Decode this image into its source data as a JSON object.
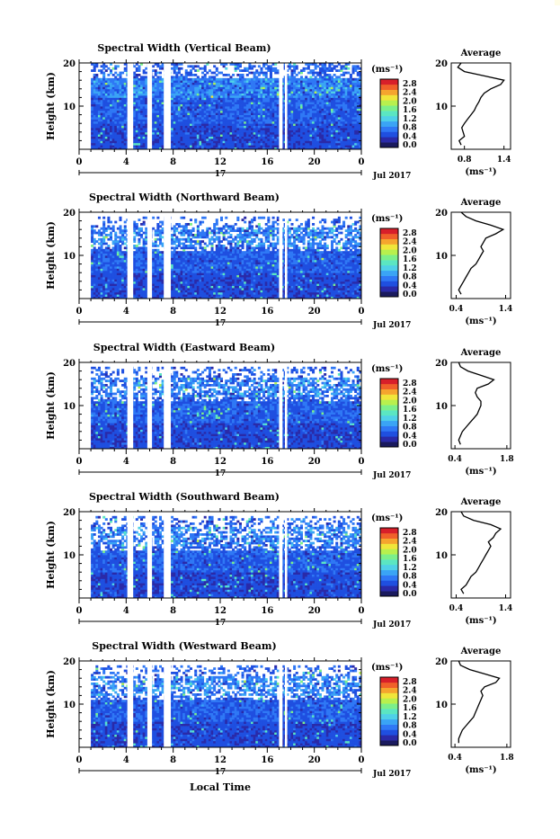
{
  "figure": {
    "x_axis_title": "Local Time",
    "avg_axis_unit": "(ms⁻¹)",
    "colorbar_unit": "(ms⁻¹)",
    "y_axis_title": "Height (km)",
    "date_right": "Jul 2017",
    "date_center": "17",
    "average_title": "Average"
  },
  "colorbar": {
    "tick_labels": [
      "0.0",
      "0.4",
      "0.8",
      "1.2",
      "1.6",
      "2.0",
      "2.4",
      "2.8"
    ],
    "colors": [
      "#1a1a5e",
      "#2a2aa8",
      "#1f4fe0",
      "#2f78f5",
      "#3aa4f5",
      "#4fd0e8",
      "#5be6c2",
      "#7cef8a",
      "#b8f04e",
      "#f0e63a",
      "#f5a52e",
      "#f0602a",
      "#d81f2a"
    ]
  },
  "chart_data": [
    {
      "type": "heatmap",
      "title": "Spectral Width (Vertical Beam)",
      "xlabel": "",
      "ylabel": "Height (km)",
      "x_ticks": [
        "0",
        "4",
        "8",
        "12",
        "16",
        "20",
        "0"
      ],
      "xlim": [
        0,
        24
      ],
      "y_ticks": [
        "20",
        "10"
      ],
      "ylim": [
        0,
        20
      ],
      "data_gaps_hours": [
        [
          4.1,
          4.6
        ],
        [
          5.8,
          6.2
        ],
        [
          7.2,
          7.8
        ],
        [
          17.0,
          17.3
        ],
        [
          17.5,
          17.7
        ]
      ],
      "bottom_hours": 1,
      "top_height_km": 20,
      "profile": {
        "title": "Average",
        "x_ticks": [
          "0.8",
          "1.4"
        ],
        "xlim": [
          0.6,
          1.5
        ],
        "heights_km": [
          1,
          2,
          3,
          4,
          5,
          6,
          7,
          8,
          9,
          10,
          11,
          12,
          13,
          14,
          15,
          16,
          17,
          18,
          19,
          20
        ],
        "values": [
          0.75,
          0.72,
          0.8,
          0.78,
          0.76,
          0.8,
          0.85,
          0.9,
          0.95,
          0.98,
          1.02,
          1.05,
          1.1,
          1.2,
          1.35,
          1.4,
          1.1,
          0.8,
          0.7,
          0.75
        ]
      }
    },
    {
      "type": "heatmap",
      "title": "Spectral Width (Northward Beam)",
      "xlabel": "",
      "ylabel": "Height (km)",
      "x_ticks": [
        "0",
        "4",
        "8",
        "12",
        "16",
        "20",
        "0"
      ],
      "xlim": [
        0,
        24
      ],
      "y_ticks": [
        "20",
        "10"
      ],
      "ylim": [
        0,
        20
      ],
      "data_gaps_hours": [
        [
          4.1,
          4.6
        ],
        [
          5.8,
          6.2
        ],
        [
          7.2,
          7.8
        ],
        [
          17.0,
          17.3
        ],
        [
          17.5,
          17.7
        ]
      ],
      "bottom_hours": 1,
      "top_height_km": 19,
      "profile": {
        "title": "Average",
        "x_ticks": [
          "0.4",
          "1.4"
        ],
        "xlim": [
          0.3,
          1.5
        ],
        "heights_km": [
          1,
          2,
          3,
          4,
          5,
          6,
          7,
          8,
          9,
          10,
          11,
          12,
          13,
          14,
          15,
          16,
          17,
          18,
          19,
          20
        ],
        "values": [
          0.5,
          0.45,
          0.5,
          0.55,
          0.6,
          0.65,
          0.7,
          0.8,
          0.85,
          0.9,
          0.95,
          0.9,
          0.95,
          1.0,
          1.2,
          1.35,
          1.1,
          0.8,
          0.6,
          0.5
        ]
      }
    },
    {
      "type": "heatmap",
      "title": "Spectral Width (Eastward Beam)",
      "xlabel": "",
      "ylabel": "Height (km)",
      "x_ticks": [
        "0",
        "4",
        "8",
        "12",
        "16",
        "20",
        "0"
      ],
      "xlim": [
        0,
        24
      ],
      "y_ticks": [
        "20",
        "10"
      ],
      "ylim": [
        0,
        20
      ],
      "data_gaps_hours": [
        [
          4.1,
          4.6
        ],
        [
          5.8,
          6.2
        ],
        [
          7.2,
          7.8
        ],
        [
          17.0,
          17.3
        ],
        [
          17.5,
          17.7
        ]
      ],
      "bottom_hours": 1,
      "top_height_km": 19,
      "profile": {
        "title": "Average",
        "x_ticks": [
          "0.4",
          "1.8"
        ],
        "xlim": [
          0.3,
          1.9
        ],
        "heights_km": [
          1,
          2,
          3,
          4,
          5,
          6,
          7,
          8,
          9,
          10,
          11,
          12,
          13,
          14,
          15,
          16,
          17,
          18,
          19,
          20
        ],
        "values": [
          0.55,
          0.5,
          0.55,
          0.6,
          0.7,
          0.8,
          0.9,
          1.0,
          1.05,
          1.1,
          1.1,
          1.0,
          0.95,
          1.0,
          1.3,
          1.45,
          1.1,
          0.75,
          0.55,
          0.5
        ]
      }
    },
    {
      "type": "heatmap",
      "title": "Spectral Width (Southward Beam)",
      "xlabel": "",
      "ylabel": "Height (km)",
      "x_ticks": [
        "0",
        "4",
        "8",
        "12",
        "16",
        "20",
        "0"
      ],
      "xlim": [
        0,
        24
      ],
      "y_ticks": [
        "20",
        "10"
      ],
      "ylim": [
        0,
        20
      ],
      "data_gaps_hours": [
        [
          4.1,
          4.6
        ],
        [
          5.8,
          6.2
        ],
        [
          7.2,
          7.8
        ],
        [
          17.0,
          17.3
        ],
        [
          17.5,
          17.7
        ]
      ],
      "bottom_hours": 1,
      "top_height_km": 19,
      "profile": {
        "title": "Average",
        "x_ticks": [
          "0.4",
          "1.4"
        ],
        "xlim": [
          0.3,
          1.5
        ],
        "heights_km": [
          1,
          2,
          3,
          4,
          5,
          6,
          7,
          8,
          9,
          10,
          11,
          12,
          13,
          14,
          15,
          16,
          17,
          18,
          19,
          20
        ],
        "values": [
          0.55,
          0.5,
          0.6,
          0.65,
          0.7,
          0.8,
          0.85,
          0.9,
          0.95,
          1.0,
          1.05,
          1.1,
          1.05,
          1.15,
          1.2,
          1.3,
          1.1,
          0.75,
          0.55,
          0.5
        ]
      }
    },
    {
      "type": "heatmap",
      "title": "Spectral Width (Westward Beam)",
      "xlabel": "Local Time",
      "ylabel": "Height (km)",
      "x_ticks": [
        "0",
        "4",
        "8",
        "12",
        "16",
        "20",
        "0"
      ],
      "xlim": [
        0,
        24
      ],
      "y_ticks": [
        "20",
        "10"
      ],
      "ylim": [
        0,
        20
      ],
      "data_gaps_hours": [
        [
          4.1,
          4.6
        ],
        [
          5.8,
          6.2
        ],
        [
          7.2,
          7.8
        ],
        [
          17.0,
          17.3
        ],
        [
          17.5,
          17.7
        ]
      ],
      "bottom_hours": 1,
      "top_height_km": 19,
      "profile": {
        "title": "Average",
        "x_ticks": [
          "0.4",
          "1.8"
        ],
        "xlim": [
          0.3,
          1.9
        ],
        "heights_km": [
          1,
          2,
          3,
          4,
          5,
          6,
          7,
          8,
          9,
          10,
          11,
          12,
          13,
          14,
          15,
          16,
          17,
          18,
          19,
          20
        ],
        "values": [
          0.5,
          0.5,
          0.55,
          0.6,
          0.7,
          0.8,
          0.9,
          0.95,
          1.0,
          1.05,
          1.1,
          1.15,
          1.1,
          1.2,
          1.5,
          1.6,
          1.2,
          0.8,
          0.55,
          0.5
        ]
      }
    }
  ]
}
